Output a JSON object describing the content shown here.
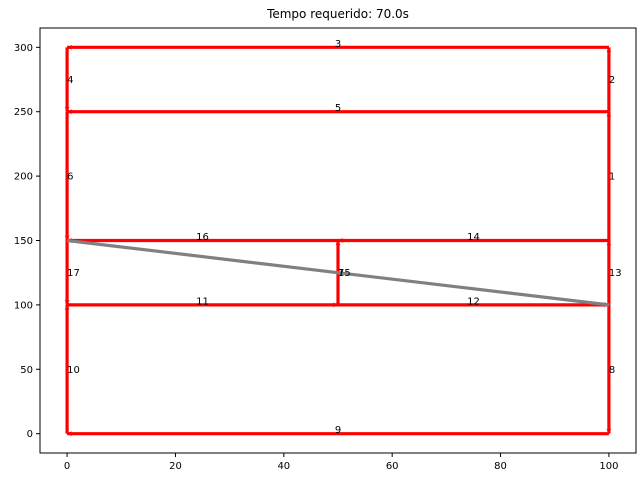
{
  "chart_data": {
    "type": "line",
    "title": "Tempo requerido: 70.0s",
    "xlim": [
      -5,
      105
    ],
    "ylim": [
      -15,
      315
    ],
    "x_ticks": [
      0,
      20,
      40,
      60,
      80,
      100
    ],
    "y_ticks": [
      0,
      50,
      100,
      150,
      200,
      250,
      300
    ],
    "grid": false,
    "segments": [
      {
        "label": "1",
        "from": [
          100,
          150
        ],
        "to": [
          100,
          250
        ],
        "color": "#ff0000"
      },
      {
        "label": "2",
        "from": [
          100,
          250
        ],
        "to": [
          100,
          300
        ],
        "color": "#ff0000"
      },
      {
        "label": "3",
        "from": [
          100,
          300
        ],
        "to": [
          0,
          300
        ],
        "color": "#ff0000"
      },
      {
        "label": "4",
        "from": [
          0,
          300
        ],
        "to": [
          0,
          250
        ],
        "color": "#ff0000"
      },
      {
        "label": "5",
        "from": [
          100,
          250
        ],
        "to": [
          0,
          250
        ],
        "color": "#ff0000"
      },
      {
        "label": "6",
        "from": [
          0,
          250
        ],
        "to": [
          0,
          150
        ],
        "color": "#ff0000"
      },
      {
        "label": "8",
        "from": [
          100,
          100
        ],
        "to": [
          100,
          0
        ],
        "color": "#ff0000"
      },
      {
        "label": "9",
        "from": [
          100,
          0
        ],
        "to": [
          0,
          0
        ],
        "color": "#ff0000"
      },
      {
        "label": "10",
        "from": [
          0,
          0
        ],
        "to": [
          0,
          100
        ],
        "color": "#ff0000"
      },
      {
        "label": "11",
        "from": [
          0,
          100
        ],
        "to": [
          50,
          100
        ],
        "color": "#ff0000"
      },
      {
        "label": "12",
        "from": [
          50,
          100
        ],
        "to": [
          100,
          100
        ],
        "color": "#ff0000"
      },
      {
        "label": "13",
        "from": [
          100,
          100
        ],
        "to": [
          100,
          150
        ],
        "color": "#ff0000"
      },
      {
        "label": "14",
        "from": [
          100,
          150
        ],
        "to": [
          50,
          150
        ],
        "color": "#ff0000"
      },
      {
        "label": "15",
        "from": [
          50,
          100
        ],
        "to": [
          50,
          150
        ],
        "color": "#ff0000"
      },
      {
        "label": "16",
        "from": [
          50,
          150
        ],
        "to": [
          0,
          150
        ],
        "color": "#ff0000"
      },
      {
        "label": "17",
        "from": [
          0,
          150
        ],
        "to": [
          0,
          100
        ],
        "color": "#ff0000"
      },
      {
        "label": "7",
        "from": [
          0,
          150
        ],
        "to": [
          100,
          100
        ],
        "color": "#808080"
      }
    ]
  }
}
